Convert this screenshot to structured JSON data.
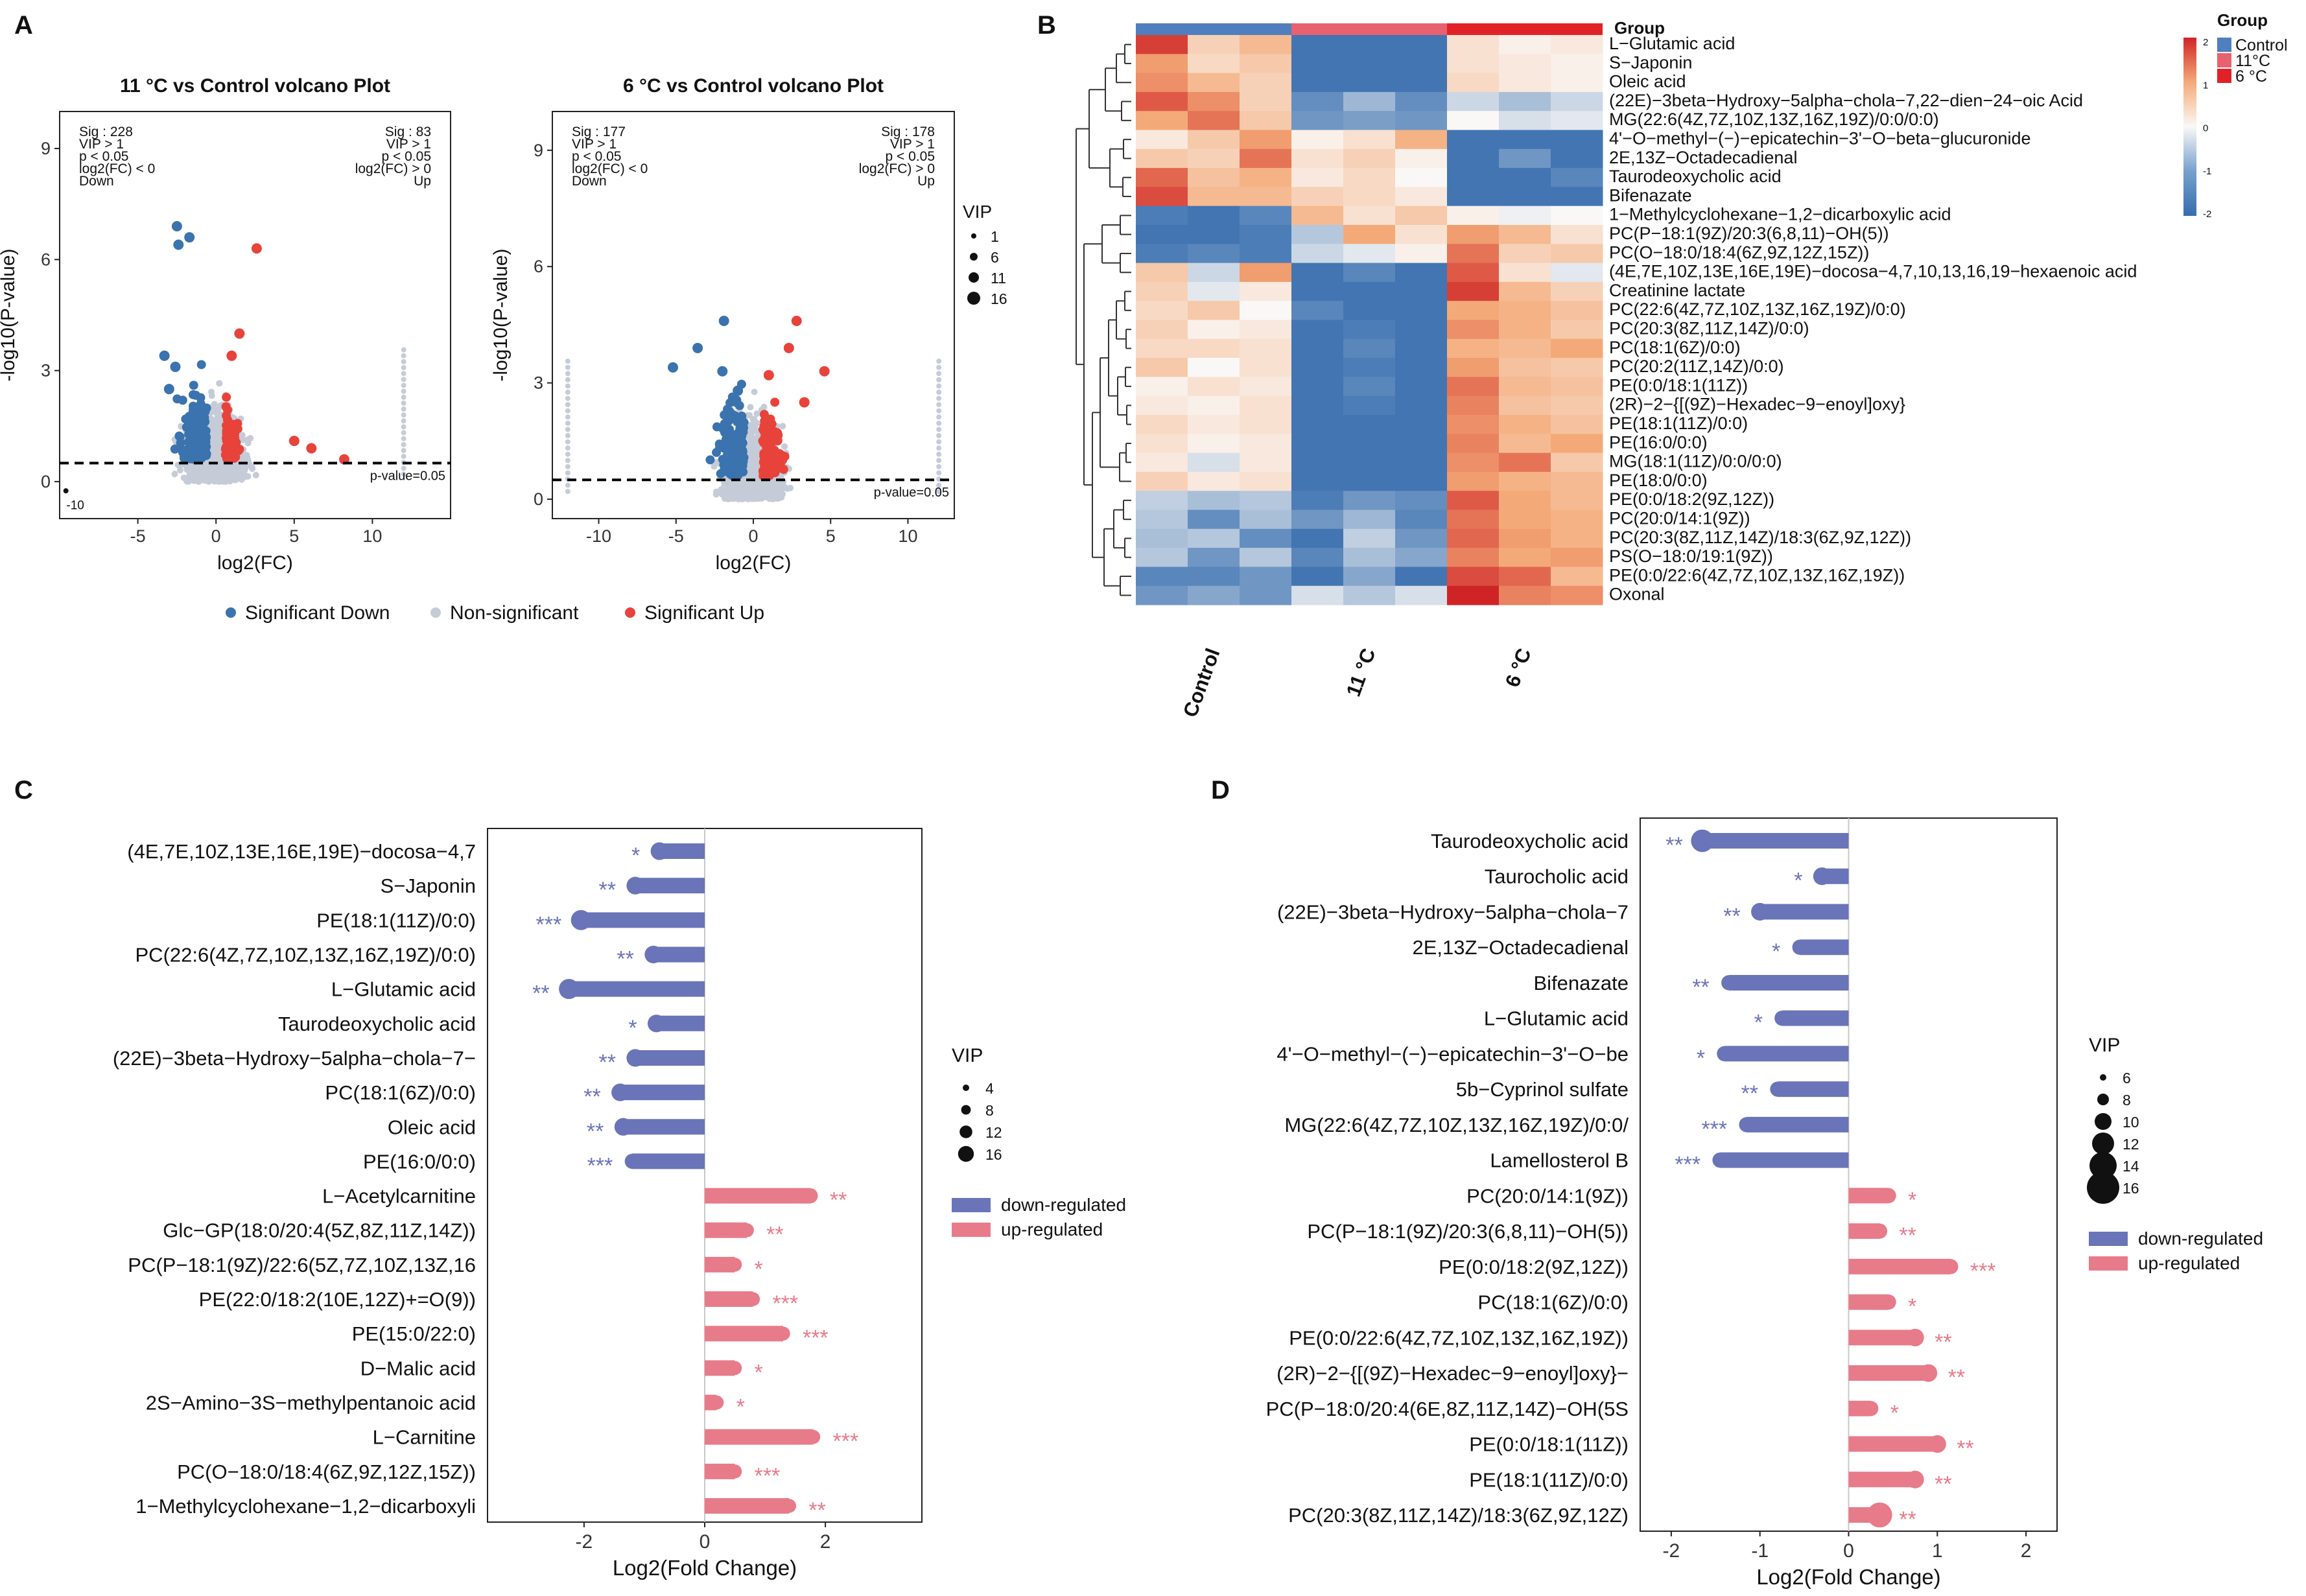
{
  "panel_letters": [
    "A",
    "B",
    "C",
    "D"
  ],
  "colors": {
    "down": "#3a73ad",
    "up": "#e8433a",
    "nonsig": "#c5ccd8",
    "lolli_down": "#6a74b8",
    "lolli_up": "#e87b8a",
    "control": "#4f7fbf",
    "g11": "#e8616f",
    "g6": "#e02226"
  },
  "volcano_legend": {
    "items": [
      "Significant Down",
      "Non-significant",
      "Significant Up"
    ]
  },
  "volcano_vip_legend": {
    "title": "VIP",
    "items": [
      "1",
      "6",
      "11",
      "16"
    ]
  },
  "chart_data": [
    {
      "type": "scatter",
      "panel": "A",
      "title": "11 °C vs  Control volcano Plot",
      "xlabel": "log2(FC)",
      "ylabel": "-log10(P-value)",
      "xlim": [
        -10,
        15
      ],
      "ylim": [
        -1,
        10
      ],
      "x_ticks": [
        "-5",
        "0",
        "5",
        "10"
      ],
      "y_ticks": [
        "0",
        "3",
        "6",
        "9"
      ],
      "extra_tick": "-10",
      "threshold_label": "p-value=0.05",
      "threshold_y": 0.5,
      "left_box": [
        "Sig : 228",
        "VIP > 1",
        "p < 0.05",
        "log2(FC) < 0",
        "Down"
      ],
      "right_box": [
        "Sig : 83",
        "VIP > 1",
        "p < 0.05",
        "log2(FC) > 0",
        "Up"
      ],
      "down_points": [
        [
          -2.5,
          6.9
        ],
        [
          -1.7,
          6.6
        ],
        [
          -2.4,
          6.4
        ],
        [
          -3.3,
          3.4
        ],
        [
          -2.6,
          3.1
        ],
        [
          -3.0,
          2.5
        ]
      ],
      "up_points": [
        [
          2.6,
          6.3
        ],
        [
          1.5,
          4.0
        ],
        [
          1.0,
          3.4
        ],
        [
          5.0,
          1.1
        ],
        [
          6.1,
          0.9
        ],
        [
          8.2,
          0.6
        ]
      ]
    },
    {
      "type": "scatter",
      "panel": "A",
      "title": "6 °C vs Control volcano Plot",
      "xlabel": "log2(FC)",
      "ylabel": "-log10(P-value)",
      "xlim": [
        -13,
        13
      ],
      "ylim": [
        -0.5,
        10
      ],
      "x_ticks": [
        "-10",
        "-5",
        "0",
        "5",
        "10"
      ],
      "y_ticks": [
        "0",
        "3",
        "6",
        "9"
      ],
      "threshold_label": "p-value=0.05",
      "threshold_y": 0.5,
      "left_box": [
        "Sig : 177",
        "VIP > 1",
        "p < 0.05",
        "log2(FC) < 0",
        "Down"
      ],
      "right_box": [
        "Sig : 178",
        "VIP > 1",
        "p < 0.05",
        "log2(FC) > 0",
        "Up"
      ],
      "down_points": [
        [
          -1.9,
          4.6
        ],
        [
          -5.2,
          3.4
        ],
        [
          -3.6,
          3.9
        ],
        [
          -2.0,
          3.3
        ],
        [
          -1.0,
          2.8
        ]
      ],
      "up_points": [
        [
          2.8,
          4.6
        ],
        [
          4.6,
          3.3
        ],
        [
          2.3,
          3.9
        ],
        [
          1.0,
          3.2
        ],
        [
          3.3,
          2.5
        ]
      ]
    },
    {
      "type": "heatmap",
      "panel": "B",
      "legend_title": "Group",
      "annotation_label": "Group",
      "groups": [
        "Control",
        "11°C",
        "6 °C"
      ],
      "group_axis_labels": [
        "Control",
        "11 °C",
        "6 °C"
      ],
      "colorbar_ticks": [
        "2",
        "1",
        "0",
        "-1",
        "-2"
      ],
      "rows": [
        "L−Glutamic acid",
        "S−Japonin",
        "Oleic acid",
        "(22E)−3beta−Hydroxy−5alpha−chola−7,22−dien−24−oic Acid",
        "MG(22:6(4Z,7Z,10Z,13Z,16Z,19Z)/0:0/0:0)",
        "4'−O−methyl−(−)−epicatechin−3'−O−beta−glucuronide",
        "2E,13Z−Octadecadienal",
        "Taurodeoxycholic acid",
        "Bifenazate",
        "1−Methylcyclohexane−1,2−dicarboxylic acid",
        "PC(P−18:1(9Z)/20:3(6,8,11)−OH(5))",
        "PC(O−18:0/18:4(6Z,9Z,12Z,15Z))",
        "(4E,7E,10Z,13E,16E,19E)−docosa−4,7,10,13,16,19−hexaenoic acid",
        "Creatinine lactate",
        "PC(22:6(4Z,7Z,10Z,13Z,16Z,19Z)/0:0)",
        "PC(20:3(8Z,11Z,14Z)/0:0)",
        "PC(18:1(6Z)/0:0)",
        "PC(20:2(11Z,14Z)/0:0)",
        "PE(0:0/18:1(11Z))",
        "(2R)−2−{[(9Z)−Hexadec−9−enoyl]oxy}",
        "PE(18:1(11Z)/0:0)",
        "PE(16:0/0:0)",
        "MG(18:1(11Z)/0:0/0:0)",
        "PE(18:0/0:0)",
        "PE(0:0/18:2(9Z,12Z))",
        "PC(20:0/14:1(9Z))",
        "PC(20:3(8Z,11Z,14Z)/18:3(6Z,9Z,12Z))",
        "PS(O−18:0/19:1(9Z))",
        "PE(0:0/22:6(4Z,7Z,10Z,13Z,16Z,19Z))",
        "Oxonal"
      ],
      "values": [
        [
          1.8,
          0.5,
          0.8,
          -1.6,
          -1.6,
          -1.6,
          0.3,
          0.1,
          0.2
        ],
        [
          1.1,
          0.4,
          0.6,
          -1.6,
          -1.6,
          -1.6,
          0.3,
          0.2,
          0.1
        ],
        [
          1.2,
          0.8,
          0.5,
          -1.6,
          -1.6,
          -1.6,
          0.4,
          0.2,
          0.1
        ],
        [
          1.6,
          1.2,
          0.5,
          -1.3,
          -0.8,
          -1.3,
          -0.4,
          -0.7,
          -0.4
        ],
        [
          1.0,
          1.4,
          0.6,
          -1.2,
          -1.1,
          -1.2,
          0.0,
          -0.3,
          -0.2
        ],
        [
          0.2,
          0.6,
          1.1,
          0.1,
          0.3,
          0.9,
          -1.6,
          -1.6,
          -1.6
        ],
        [
          0.6,
          0.5,
          1.4,
          0.3,
          0.5,
          0.1,
          -1.6,
          -1.2,
          -1.6
        ],
        [
          1.5,
          0.7,
          0.9,
          0.2,
          0.4,
          0.0,
          -1.6,
          -1.6,
          -1.4
        ],
        [
          1.7,
          0.8,
          0.8,
          0.5,
          0.4,
          0.2,
          -1.6,
          -1.6,
          -1.6
        ],
        [
          -1.5,
          -1.6,
          -1.4,
          0.8,
          0.3,
          0.6,
          0.1,
          -0.1,
          0.0
        ],
        [
          -1.6,
          -1.6,
          -1.5,
          -0.6,
          1.0,
          0.3,
          1.1,
          0.8,
          0.3
        ],
        [
          -1.5,
          -1.4,
          -1.5,
          -0.4,
          -0.2,
          0.1,
          1.4,
          0.5,
          0.6
        ],
        [
          0.6,
          -0.4,
          1.1,
          -1.6,
          -1.4,
          -1.6,
          1.6,
          0.3,
          -0.2
        ],
        [
          0.5,
          -0.2,
          0.2,
          -1.6,
          -1.6,
          -1.6,
          1.8,
          0.8,
          0.5
        ],
        [
          0.4,
          0.6,
          0.0,
          -1.4,
          -1.6,
          -1.6,
          1.0,
          0.9,
          0.7
        ],
        [
          0.5,
          0.1,
          0.2,
          -1.6,
          -1.5,
          -1.6,
          1.2,
          0.9,
          0.6
        ],
        [
          0.4,
          0.4,
          0.3,
          -1.6,
          -1.4,
          -1.6,
          0.9,
          0.8,
          1.0
        ],
        [
          0.6,
          0.0,
          0.3,
          -1.6,
          -1.5,
          -1.6,
          1.1,
          0.7,
          0.6
        ],
        [
          0.1,
          0.3,
          0.2,
          -1.6,
          -1.4,
          -1.6,
          1.4,
          0.8,
          0.7
        ],
        [
          0.2,
          0.1,
          0.3,
          -1.6,
          -1.5,
          -1.6,
          1.3,
          0.7,
          0.6
        ],
        [
          0.4,
          0.2,
          0.3,
          -1.6,
          -1.6,
          -1.6,
          1.2,
          0.9,
          0.7
        ],
        [
          0.3,
          0.1,
          0.2,
          -1.6,
          -1.6,
          -1.6,
          1.3,
          0.8,
          1.0
        ],
        [
          0.2,
          -0.3,
          0.2,
          -1.6,
          -1.6,
          -1.6,
          1.2,
          1.4,
          0.6
        ],
        [
          0.5,
          0.2,
          0.3,
          -1.6,
          -1.6,
          -1.6,
          1.1,
          0.9,
          0.8
        ],
        [
          -0.5,
          -0.7,
          -0.6,
          -1.5,
          -1.2,
          -1.3,
          1.6,
          1.0,
          0.8
        ],
        [
          -0.6,
          -1.3,
          -0.7,
          -1.2,
          -0.8,
          -1.4,
          1.4,
          1.0,
          0.9
        ],
        [
          -0.7,
          -0.6,
          -1.3,
          -1.6,
          -0.5,
          -1.2,
          1.5,
          1.1,
          0.9
        ],
        [
          -0.6,
          -1.2,
          -0.6,
          -1.4,
          -0.7,
          -1.0,
          1.3,
          1.0,
          1.1
        ],
        [
          -1.4,
          -1.4,
          -1.2,
          -1.6,
          -1.0,
          -1.6,
          1.7,
          1.5,
          0.8
        ],
        [
          -1.2,
          -1.0,
          -1.2,
          -0.3,
          -0.6,
          -0.3,
          2.0,
          1.3,
          1.2
        ]
      ]
    },
    {
      "type": "lollipop",
      "panel": "C",
      "xlabel": "Log2(Fold Change)",
      "xlim": [
        -3.6,
        3.6
      ],
      "x_ticks": [
        "-2",
        "0",
        "2"
      ],
      "legend": {
        "title": "VIP",
        "sizes": [
          "4",
          "8",
          "12",
          "16"
        ],
        "down_label": "down-regulated",
        "up_label": "up-regulated"
      },
      "items": [
        {
          "label": "(4E,7E,10Z,13E,16E,19E)−docosa−4,7",
          "value": -0.75,
          "sig": "*",
          "vip": 8
        },
        {
          "label": "S−Japonin",
          "value": -1.15,
          "sig": "**",
          "vip": 8
        },
        {
          "label": "PE(18:1(11Z)/0:0)",
          "value": -2.05,
          "sig": "***",
          "vip": 10
        },
        {
          "label": "PC(22:6(4Z,7Z,10Z,13Z,16Z,19Z)/0:0)",
          "value": -0.85,
          "sig": "**",
          "vip": 8
        },
        {
          "label": "L−Glutamic acid",
          "value": -2.25,
          "sig": "**",
          "vip": 10
        },
        {
          "label": "Taurodeoxycholic acid",
          "value": -0.8,
          "sig": "*",
          "vip": 8
        },
        {
          "label": "(22E)−3beta−Hydroxy−5alpha−chola−7−",
          "value": -1.15,
          "sig": "**",
          "vip": 8
        },
        {
          "label": "PC(18:1(6Z)/0:0)",
          "value": -1.4,
          "sig": "**",
          "vip": 8
        },
        {
          "label": "Oleic acid",
          "value": -1.35,
          "sig": "**",
          "vip": 8
        },
        {
          "label": "PE(16:0/0:0)",
          "value": -1.2,
          "sig": "***",
          "vip": 6
        },
        {
          "label": "L−Acetylcarnitine",
          "value": 1.75,
          "sig": "**",
          "vip": 6
        },
        {
          "label": "Glc−GP(18:0/20:4(5Z,8Z,11Z,14Z))",
          "value": 0.7,
          "sig": "**",
          "vip": 5
        },
        {
          "label": "PC(P−18:1(9Z)/22:6(5Z,7Z,10Z,13Z,16",
          "value": 0.5,
          "sig": "*",
          "vip": 5
        },
        {
          "label": "PE(22:0/18:2(10E,12Z)+=O(9))",
          "value": 0.8,
          "sig": "***",
          "vip": 5
        },
        {
          "label": "PE(15:0/22:0)",
          "value": 1.3,
          "sig": "***",
          "vip": 5
        },
        {
          "label": "D−Malic acid",
          "value": 0.5,
          "sig": "*",
          "vip": 5
        },
        {
          "label": "2S−Amino−3S−methylpentanoic acid",
          "value": 0.2,
          "sig": "*",
          "vip": 5
        },
        {
          "label": "L−Carnitine",
          "value": 1.8,
          "sig": "***",
          "vip": 5
        },
        {
          "label": "PC(O−18:0/18:4(6Z,9Z,12Z,15Z))",
          "value": 0.5,
          "sig": "***",
          "vip": 5
        },
        {
          "label": "1−Methylcyclohexane−1,2−dicarboxyli",
          "value": 1.4,
          "sig": "**",
          "vip": 5
        }
      ]
    },
    {
      "type": "lollipop",
      "panel": "D",
      "xlabel": "Log2(Fold Change)",
      "xlim": [
        -2.35,
        2.35
      ],
      "x_ticks": [
        "-2",
        "-1",
        "0",
        "1",
        "2"
      ],
      "legend": {
        "title": "VIP",
        "sizes": [
          "6",
          "8",
          "10",
          "12",
          "14",
          "16"
        ],
        "down_label": "down-regulated",
        "up_label": "up-regulated"
      },
      "items": [
        {
          "label": "Taurodeoxycholic acid",
          "value": -1.65,
          "sig": "**",
          "vip": 12
        },
        {
          "label": "Taurocholic acid",
          "value": -0.3,
          "sig": "*",
          "vip": 8
        },
        {
          "label": "(22E)−3beta−Hydroxy−5alpha−chola−7",
          "value": -1.0,
          "sig": "**",
          "vip": 8
        },
        {
          "label": "2E,13Z−Octadecadienal",
          "value": -0.55,
          "sig": "*",
          "vip": 6
        },
        {
          "label": "Bifenazate",
          "value": -1.35,
          "sig": "**",
          "vip": 6
        },
        {
          "label": "L−Glutamic acid",
          "value": -0.75,
          "sig": "*",
          "vip": 6
        },
        {
          "label": "4'−O−methyl−(−)−epicatechin−3'−O−be",
          "value": -1.4,
          "sig": "*",
          "vip": 6
        },
        {
          "label": "5b−Cyprinol sulfate",
          "value": -0.8,
          "sig": "**",
          "vip": 6
        },
        {
          "label": "MG(22:6(4Z,7Z,10Z,13Z,16Z,19Z)/0:0/",
          "value": -1.15,
          "sig": "***",
          "vip": 6
        },
        {
          "label": "Lamellosterol B",
          "value": -1.45,
          "sig": "***",
          "vip": 6
        },
        {
          "label": "PC(20:0/14:1(9Z))",
          "value": 0.45,
          "sig": "*",
          "vip": 6
        },
        {
          "label": "PC(P−18:1(9Z)/20:3(6,8,11)−OH(5))",
          "value": 0.35,
          "sig": "**",
          "vip": 6
        },
        {
          "label": "PE(0:0/18:2(9Z,12Z))",
          "value": 1.15,
          "sig": "***",
          "vip": 6
        },
        {
          "label": "PC(18:1(6Z)/0:0)",
          "value": 0.45,
          "sig": "*",
          "vip": 6
        },
        {
          "label": "PE(0:0/22:6(4Z,7Z,10Z,13Z,16Z,19Z))",
          "value": 0.75,
          "sig": "**",
          "vip": 8
        },
        {
          "label": "(2R)−2−{[(9Z)−Hexadec−9−enoyl]oxy}−",
          "value": 0.9,
          "sig": "**",
          "vip": 8
        },
        {
          "label": "PC(P−18:0/20:4(6E,8Z,11Z,14Z)−OH(5S",
          "value": 0.25,
          "sig": "*",
          "vip": 6
        },
        {
          "label": "PE(0:0/18:1(11Z))",
          "value": 1.0,
          "sig": "**",
          "vip": 8
        },
        {
          "label": "PE(18:1(11Z)/0:0)",
          "value": 0.75,
          "sig": "**",
          "vip": 8
        },
        {
          "label": "PC(20:3(8Z,11Z,14Z)/18:3(6Z,9Z,12Z)",
          "value": 0.35,
          "sig": "**",
          "vip": 14
        }
      ]
    }
  ]
}
